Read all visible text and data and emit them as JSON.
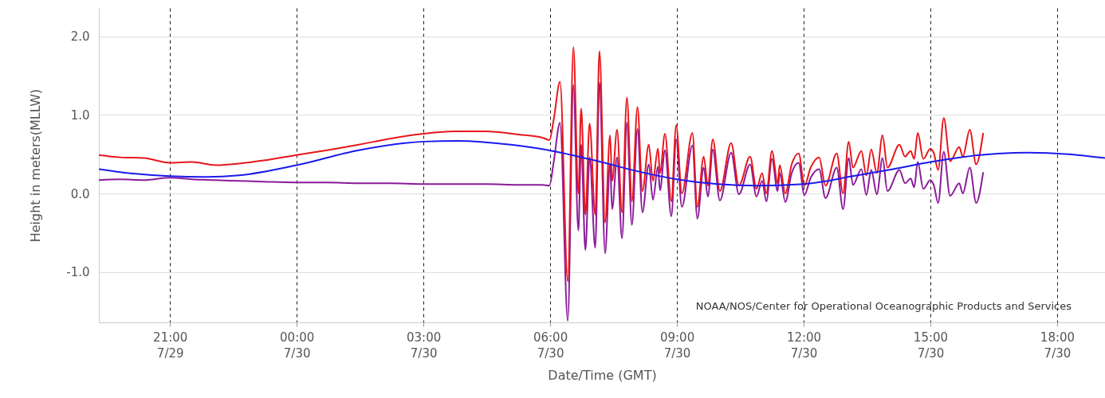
{
  "chart_data": {
    "type": "line",
    "xlabel": "Date/Time (GMT)",
    "ylabel": "Height in meters(MLLW)",
    "xlim": [
      "--07-29T19:19",
      "--07-30T19:08"
    ],
    "ylim": [
      -1.64,
      2.36
    ],
    "xticks": [
      {
        "value": "--07-29T21:00",
        "label": "21:00\n7/29"
      },
      {
        "value": "--07-30T00:00",
        "label": "00:00\n7/30"
      },
      {
        "value": "--07-30T03:00",
        "label": "03:00\n7/30"
      },
      {
        "value": "--07-30T06:00",
        "label": "06:00\n7/30"
      },
      {
        "value": "--07-30T09:00",
        "label": "09:00\n7/30"
      },
      {
        "value": "--07-30T12:00",
        "label": "12:00\n7/30"
      },
      {
        "value": "--07-30T15:00",
        "label": "15:00\n7/30"
      },
      {
        "value": "--07-30T18:00",
        "label": "18:00\n7/30"
      }
    ],
    "yticks": [
      {
        "value": -1,
        "label": "-1.0"
      },
      {
        "value": 0,
        "label": "0.0"
      },
      {
        "value": 1,
        "label": "1.0"
      },
      {
        "value": 2,
        "label": "2.0"
      }
    ],
    "grid": true,
    "marker": "none",
    "line_style": "solid",
    "annotations": [
      "NOAA/NOS/Center for Operational Oceanographic Products and Services"
    ],
    "series": [
      {
        "color": "#8b1a9a",
        "x": [
          "--07-29T19:19",
          "--07-29T19:49",
          "--07-29T20:23",
          "--07-29T21:00",
          "--07-29T21:31",
          "--07-29T22:05",
          "--07-29T22:38",
          "--07-29T23:13",
          "--07-30T00:00",
          "--07-30T00:43",
          "--07-30T01:28",
          "--07-30T02:14",
          "--07-30T03:00",
          "--07-30T03:44",
          "--07-30T04:29",
          "--07-30T05:15",
          "--07-30T05:49",
          "--07-30T05:59",
          "--07-30T06:05",
          "--07-30T06:14",
          "--07-30T06:25",
          "--07-30T06:33",
          "--07-30T06:40",
          "--07-30T06:44",
          "--07-30T06:50",
          "--07-30T06:56",
          "--07-30T07:04",
          "--07-30T07:10",
          "--07-30T07:18",
          "--07-30T07:25",
          "--07-30T07:28",
          "--07-30T07:35",
          "--07-30T07:42",
          "--07-30T07:49",
          "--07-30T07:56",
          "--07-30T08:04",
          "--07-30T08:11",
          "--07-30T08:20",
          "--07-30T08:26",
          "--07-30T08:33",
          "--07-30T08:36",
          "--07-30T08:43",
          "--07-30T08:52",
          "--07-30T08:59",
          "--07-30T09:07",
          "--07-30T09:22",
          "--07-30T09:29",
          "--07-30T09:38",
          "--07-30T09:44",
          "--07-30T09:51",
          "--07-30T10:01",
          "--07-30T10:17",
          "--07-30T10:28",
          "--07-30T10:44",
          "--07-30T10:53",
          "--07-30T11:01",
          "--07-30T11:07",
          "--07-30T11:15",
          "--07-30T11:23",
          "--07-30T11:26",
          "--07-30T11:34",
          "--07-30T11:43",
          "--07-30T11:53",
          "--07-30T12:01",
          "--07-30T12:10",
          "--07-30T12:22",
          "--07-30T12:31",
          "--07-30T12:47",
          "--07-30T12:56",
          "--07-30T13:04",
          "--07-30T13:10",
          "--07-30T13:22",
          "--07-30T13:29",
          "--07-30T13:36",
          "--07-30T13:44",
          "--07-30T13:52",
          "--07-30T13:59",
          "--07-30T14:16",
          "--07-30T14:24",
          "--07-30T14:32",
          "--07-30T14:37",
          "--07-30T14:42",
          "--07-30T14:50",
          "--07-30T15:00",
          "--07-30T15:05",
          "--07-30T15:11",
          "--07-30T15:19",
          "--07-30T15:28",
          "--07-30T15:41",
          "--07-30T15:46",
          "--07-30T15:56",
          "--07-30T16:05",
          "--07-30T16:15"
        ],
        "values": [
          0.17,
          0.18,
          0.17,
          0.2,
          0.18,
          0.17,
          0.16,
          0.15,
          0.14,
          0.14,
          0.13,
          0.13,
          0.12,
          0.12,
          0.12,
          0.11,
          0.11,
          0.1,
          0.4,
          0.9,
          -1.62,
          1.38,
          -0.47,
          0.62,
          -0.72,
          0.46,
          -0.69,
          1.41,
          -0.76,
          0.37,
          -0.2,
          0.46,
          -0.57,
          0.9,
          -0.4,
          0.82,
          -0.24,
          0.37,
          -0.08,
          0.34,
          0.04,
          0.55,
          -0.29,
          0.69,
          -0.17,
          0.61,
          -0.32,
          0.33,
          -0.04,
          0.56,
          -0.09,
          0.52,
          -0.01,
          0.37,
          -0.04,
          0.16,
          -0.1,
          0.44,
          0.03,
          0.26,
          -0.11,
          0.26,
          0.39,
          -0.02,
          0.2,
          0.31,
          -0.06,
          0.33,
          -0.2,
          0.45,
          0.11,
          0.31,
          -0.02,
          0.3,
          -0.01,
          0.45,
          0.03,
          0.3,
          0.13,
          0.19,
          0.08,
          0.4,
          0.06,
          0.17,
          0.1,
          -0.12,
          0.53,
          -0.03,
          0.13,
          0.0,
          0.33,
          -0.12,
          0.27
        ]
      },
      {
        "color": "#e8161b",
        "x": [
          "--07-29T19:19",
          "--07-29T19:49",
          "--07-29T20:23",
          "--07-29T21:00",
          "--07-29T21:31",
          "--07-29T22:05",
          "--07-29T22:38",
          "--07-29T23:13",
          "--07-30T00:00",
          "--07-30T00:43",
          "--07-30T01:28",
          "--07-30T02:14",
          "--07-30T03:00",
          "--07-30T03:44",
          "--07-30T04:29",
          "--07-30T05:15",
          "--07-30T05:49",
          "--07-30T05:59",
          "--07-30T06:05",
          "--07-30T06:14",
          "--07-30T06:25",
          "--07-30T06:33",
          "--07-30T06:40",
          "--07-30T06:44",
          "--07-30T06:50",
          "--07-30T06:56",
          "--07-30T07:04",
          "--07-30T07:10",
          "--07-30T07:18",
          "--07-30T07:25",
          "--07-30T07:28",
          "--07-30T07:35",
          "--07-30T07:42",
          "--07-30T07:49",
          "--07-30T07:56",
          "--07-30T08:04",
          "--07-30T08:11",
          "--07-30T08:20",
          "--07-30T08:26",
          "--07-30T08:33",
          "--07-30T08:36",
          "--07-30T08:43",
          "--07-30T08:52",
          "--07-30T08:59",
          "--07-30T09:07",
          "--07-30T09:22",
          "--07-30T09:29",
          "--07-30T09:38",
          "--07-30T09:44",
          "--07-30T09:51",
          "--07-30T10:01",
          "--07-30T10:17",
          "--07-30T10:28",
          "--07-30T10:44",
          "--07-30T10:53",
          "--07-30T11:01",
          "--07-30T11:07",
          "--07-30T11:15",
          "--07-30T11:23",
          "--07-30T11:26",
          "--07-30T11:34",
          "--07-30T11:43",
          "--07-30T11:53",
          "--07-30T12:01",
          "--07-30T12:10",
          "--07-30T12:22",
          "--07-30T12:31",
          "--07-30T12:47",
          "--07-30T12:56",
          "--07-30T13:04",
          "--07-30T13:10",
          "--07-30T13:22",
          "--07-30T13:29",
          "--07-30T13:36",
          "--07-30T13:44",
          "--07-30T13:52",
          "--07-30T13:59",
          "--07-30T14:16",
          "--07-30T14:24",
          "--07-30T14:32",
          "--07-30T14:37",
          "--07-30T14:42",
          "--07-30T14:50",
          "--07-30T15:00",
          "--07-30T15:05",
          "--07-30T15:11",
          "--07-30T15:19",
          "--07-30T15:28",
          "--07-30T15:41",
          "--07-30T15:46",
          "--07-30T15:56",
          "--07-30T16:05",
          "--07-30T16:15"
        ],
        "values": [
          0.49,
          0.46,
          0.45,
          0.39,
          0.4,
          0.36,
          0.38,
          0.42,
          0.49,
          0.55,
          0.62,
          0.7,
          0.76,
          0.79,
          0.79,
          0.75,
          0.71,
          0.68,
          0.94,
          1.42,
          -1.12,
          1.86,
          0.0,
          1.08,
          -0.27,
          0.89,
          -0.27,
          1.81,
          -0.37,
          0.74,
          0.16,
          0.81,
          -0.24,
          1.22,
          -0.1,
          1.1,
          0.03,
          0.62,
          0.16,
          0.57,
          0.26,
          0.76,
          -0.1,
          0.87,
          0.0,
          0.77,
          -0.17,
          0.47,
          0.1,
          0.69,
          0.03,
          0.64,
          0.1,
          0.47,
          0.06,
          0.26,
          0.0,
          0.54,
          0.13,
          0.36,
          0.0,
          0.37,
          0.51,
          0.1,
          0.33,
          0.46,
          0.1,
          0.51,
          0.0,
          0.66,
          0.33,
          0.54,
          0.23,
          0.56,
          0.26,
          0.74,
          0.33,
          0.62,
          0.47,
          0.54,
          0.44,
          0.77,
          0.44,
          0.57,
          0.51,
          0.3,
          0.96,
          0.41,
          0.59,
          0.47,
          0.81,
          0.37,
          0.77
        ]
      },
      {
        "color": "#1a1aee",
        "x": [
          "--07-29T19:19",
          "--07-29T20:11",
          "--07-29T21:00",
          "--07-29T21:53",
          "--07-29T22:38",
          "--07-30T00:00",
          "--07-30T01:28",
          "--07-30T03:00",
          "--07-30T03:50",
          "--07-30T05:04",
          "--07-30T05:58",
          "--07-30T07:08",
          "--07-30T08:05",
          "--07-30T09:00",
          "--07-30T09:58",
          "--07-30T10:55",
          "--07-30T12:00",
          "--07-30T13:10",
          "--07-30T14:07",
          "--07-30T15:00",
          "--07-30T16:11",
          "--07-30T17:19",
          "--07-30T18:16",
          "--07-30T19:08"
        ],
        "values": [
          0.31,
          0.25,
          0.22,
          0.21,
          0.23,
          0.36,
          0.55,
          0.66,
          0.67,
          0.62,
          0.55,
          0.41,
          0.28,
          0.18,
          0.12,
          0.1,
          0.12,
          0.22,
          0.31,
          0.4,
          0.49,
          0.52,
          0.5,
          0.45
        ]
      }
    ]
  }
}
